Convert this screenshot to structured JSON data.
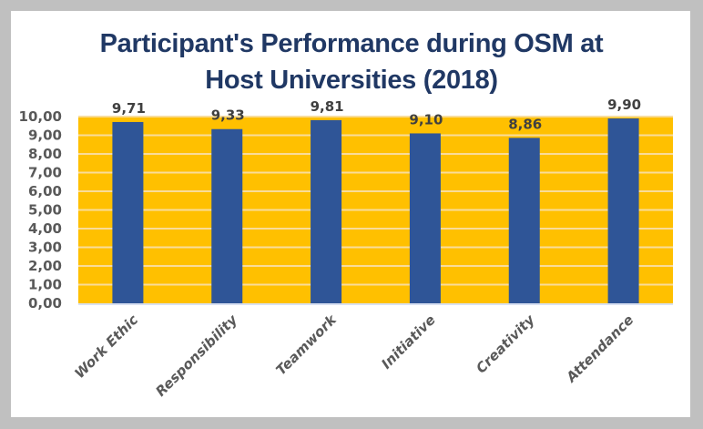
{
  "chart_data": {
    "type": "bar",
    "title": "Participant's Performance during OSM at Host Universities (2018)",
    "title_lines": [
      "Participant's Performance during OSM at",
      "Host Universities (2018)"
    ],
    "categories": [
      "Work Ethic",
      "Responsibility",
      "Teamwork",
      "Initiative",
      "Creativity",
      "Attendance"
    ],
    "values": [
      9.71,
      9.33,
      9.81,
      9.1,
      8.86,
      9.9
    ],
    "data_labels": [
      "9,71",
      "9,33",
      "9,81",
      "9,10",
      "8,86",
      "9,90"
    ],
    "xlabel": "",
    "ylabel": "",
    "ylim": [
      0,
      10
    ],
    "yticks": [
      0,
      1,
      2,
      3,
      4,
      5,
      6,
      7,
      8,
      9,
      10
    ],
    "ytick_labels": [
      "0,00",
      "1,00",
      "2,00",
      "3,00",
      "4,00",
      "5,00",
      "6,00",
      "7,00",
      "8,00",
      "9,00",
      "10,00"
    ],
    "grid": true,
    "legend": "none",
    "colors": {
      "bar": "#2F5597",
      "plot_background": "#FFC000",
      "gridline": "#F9DC9A",
      "title": "#203864",
      "frame": "#C0C0C0"
    }
  }
}
